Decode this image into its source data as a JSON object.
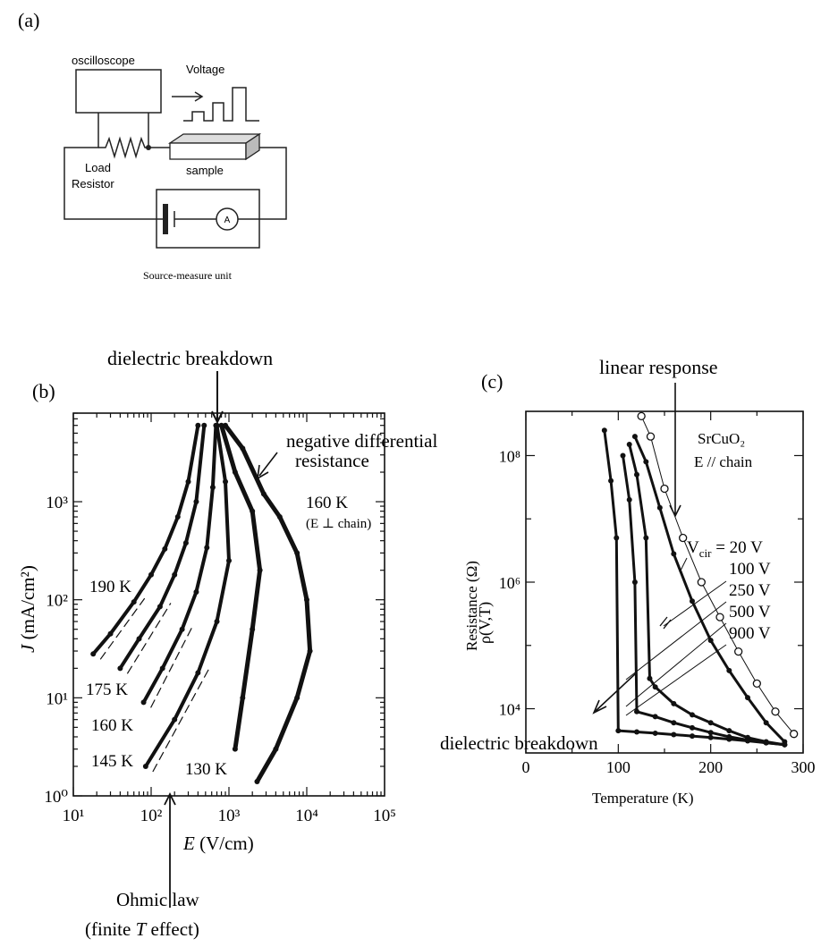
{
  "panel_a": {
    "label": "(a)",
    "oscilloscope": "oscilloscope",
    "voltage": "Voltage",
    "load": "Load",
    "resistor": "Resistor",
    "sample": "sample",
    "ammeter": "A",
    "smu": "Source-measure unit"
  },
  "panel_b": {
    "label": "(b)",
    "breakdown_label": "dielectric breakdown",
    "ndr_line1": "negative differential",
    "ndr_line2": "resistance",
    "temp_note": "160 K",
    "orientation_note": "(E ⊥ chain)",
    "ohmic_line1": "Ohmic law",
    "ohmic_line2_pre": "(finite ",
    "ohmic_line2_T": "T",
    "ohmic_line2_post": " effect)"
  },
  "panel_c": {
    "label": "(c)",
    "linear_label": "linear response",
    "material": "SrCuO₂",
    "direction": "E // chain",
    "vcir_label": "V",
    "vcir_sub": "cir",
    "breakdown_label": "dielectric breakdown"
  },
  "chart_data": [
    {
      "type": "line",
      "panel": "b",
      "xlabel": "E (V/cm)",
      "ylabel": "J (mA/cm²)",
      "xscale": "log",
      "yscale": "log",
      "xlim": [
        10,
        100000
      ],
      "ylim": [
        1,
        8000
      ],
      "xticks": [
        "10¹",
        "10²",
        "10³",
        "10⁴",
        "10⁵"
      ],
      "yticks": [
        "10⁰",
        "10¹",
        "10²",
        "10³"
      ],
      "series": [
        {
          "name": "190 K",
          "x": [
            18,
            30,
            60,
            100,
            150,
            220,
            300,
            400
          ],
          "y": [
            28,
            45,
            95,
            180,
            330,
            700,
            1600,
            6000
          ]
        },
        {
          "name": "175 K",
          "x": [
            40,
            70,
            130,
            200,
            280,
            380,
            480
          ],
          "y": [
            20,
            40,
            85,
            180,
            380,
            1000,
            6000
          ]
        },
        {
          "name": "160 K",
          "x": [
            80,
            140,
            250,
            380,
            520,
            620,
            680
          ],
          "y": [
            9,
            20,
            50,
            120,
            340,
            1400,
            6000
          ]
        },
        {
          "name": "145 K",
          "x": [
            85,
            200,
            400,
            700,
            1000,
            900,
            700
          ],
          "y": [
            2,
            6,
            18,
            60,
            250,
            1600,
            6000
          ]
        },
        {
          "name": "130 K",
          "x": [
            1200,
            1500,
            2000,
            2500,
            2000,
            1200,
            800
          ],
          "y": [
            3,
            10,
            50,
            200,
            800,
            2000,
            6000
          ]
        },
        {
          "name": "",
          "x": [
            2300,
            4000,
            7500,
            11000,
            10000,
            7500,
            4500,
            2800,
            1500,
            900
          ],
          "y": [
            1.4,
            3,
            10,
            30,
            100,
            300,
            700,
            1200,
            3500,
            6000
          ]
        }
      ]
    },
    {
      "type": "scatter",
      "panel": "c",
      "title": "",
      "xlabel": "Temperature (K)",
      "ylabel_top": "ρ(V,T)",
      "ylabel": "Resistance (Ω)",
      "yscale": "log",
      "xlim": [
        0,
        300
      ],
      "ylim": [
        2000,
        500000000
      ],
      "xticks": [
        "0",
        "100",
        "200",
        "300"
      ],
      "yticks": [
        "10⁴",
        "10⁶",
        "10⁸"
      ],
      "series": [
        {
          "name": "20 V",
          "x": [
            125,
            135,
            150,
            170,
            190,
            210,
            230,
            250,
            270,
            290
          ],
          "y": [
            420000000,
            200000000,
            30000000,
            5000000,
            1000000,
            280000,
            80000,
            25000,
            9000,
            4000
          ]
        },
        {
          "name": "100 V",
          "x": [
            118,
            130,
            145,
            160,
            180,
            200,
            220,
            240,
            260,
            280
          ],
          "y": [
            200000000,
            80000000,
            15000000,
            2800000,
            500000,
            120000,
            40000,
            15000,
            6000,
            3000
          ]
        },
        {
          "name": "250 V",
          "x": [
            112,
            120,
            130,
            134,
            140,
            160,
            180,
            200,
            220,
            240,
            260,
            280
          ],
          "y": [
            150000000,
            50000000,
            5000000,
            30000,
            22000,
            12000,
            8000,
            6000,
            4500,
            3500,
            3000,
            2700
          ]
        },
        {
          "name": "500 V",
          "x": [
            105,
            112,
            118,
            120,
            140,
            160,
            180,
            200,
            220,
            240,
            260,
            280
          ],
          "y": [
            100000000,
            20000000,
            1000000,
            9000,
            7500,
            6000,
            5000,
            4200,
            3600,
            3200,
            2900,
            2700
          ]
        },
        {
          "name": "900 V",
          "x": [
            85,
            92,
            98,
            100,
            120,
            140,
            160,
            180,
            200,
            220,
            240,
            260,
            280
          ],
          "y": [
            250000000,
            40000000,
            5000000,
            4500,
            4300,
            4100,
            3900,
            3700,
            3500,
            3300,
            3100,
            2900,
            2700
          ]
        }
      ]
    }
  ]
}
